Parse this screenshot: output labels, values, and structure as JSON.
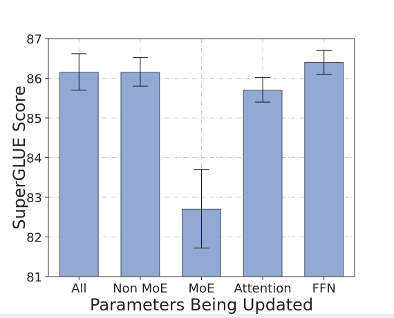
{
  "chart_data": {
    "type": "bar",
    "title": "",
    "xlabel": "Parameters Being Updated",
    "ylabel": "SuperGLUE Score",
    "ylim": [
      81,
      87
    ],
    "yticks": [
      81,
      82,
      83,
      84,
      85,
      86,
      87
    ],
    "grid": true,
    "categories": [
      "All",
      "Non MoE",
      "MoE",
      "Attention",
      "FFN"
    ],
    "values": [
      86.15,
      86.15,
      82.7,
      85.7,
      86.4
    ],
    "error_low": [
      85.7,
      85.8,
      81.72,
      85.4,
      86.1
    ],
    "error_high": [
      86.62,
      86.52,
      83.7,
      86.02,
      86.7
    ],
    "colors": {
      "bar": "#91a9d3",
      "bar_edge": "#45505e",
      "grid": "#c8c8c8",
      "axis": "#333333"
    }
  }
}
